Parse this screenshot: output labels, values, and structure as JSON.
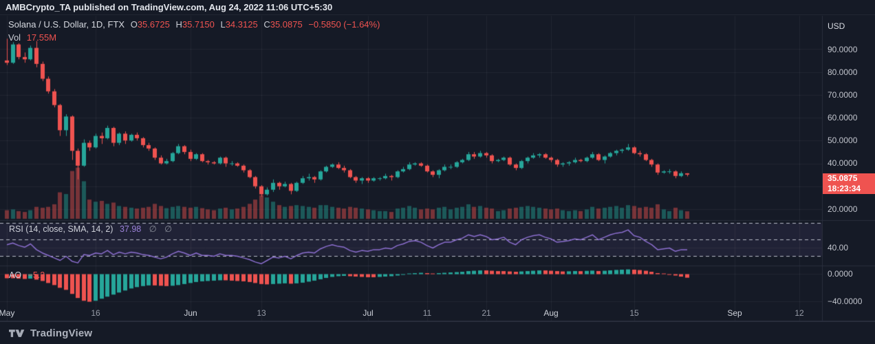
{
  "attribution": "AMBCrypto_TA published on TradingView.com, Aug 24, 2022 11:06 UTC+5:30",
  "legend": {
    "symbol": "Solana / U.S. Dollar, 1D, FTX",
    "ohlc": [
      {
        "label": "O",
        "value": "35.6725"
      },
      {
        "label": "H",
        "value": "35.7150"
      },
      {
        "label": "L",
        "value": "34.3125"
      },
      {
        "label": "C",
        "value": "35.0875"
      }
    ],
    "change": "−0.5850 (−1.64%)",
    "volume_label": "Vol",
    "volume_value": "17.55M"
  },
  "price_axis": {
    "currency": "USD",
    "labels": [
      "90.0000",
      "80.0000",
      "70.0000",
      "60.0000",
      "50.0000",
      "40.0000",
      "20.0000"
    ],
    "last_price": "35.0875",
    "countdown": "18:23:34"
  },
  "rsi_panel": {
    "title": "RSI (14, close, SMA, 14, 2)",
    "value": "37.98",
    "hidden_markers": "∅ ∅",
    "axis_label": "40.00"
  },
  "ao_panel": {
    "title": "AO",
    "value": "−5.2",
    "axis_zero_label": "0.0000",
    "axis_neg_label": "−40.0000"
  },
  "time_axis": {
    "ticks": [
      {
        "label": "May",
        "day": 0,
        "month": true
      },
      {
        "label": "16",
        "day": 15,
        "month": false
      },
      {
        "label": "Jun",
        "day": 31,
        "month": true
      },
      {
        "label": "13",
        "day": 43,
        "month": false
      },
      {
        "label": "Jul",
        "day": 61,
        "month": true
      },
      {
        "label": "11",
        "day": 71,
        "month": false
      },
      {
        "label": "21",
        "day": 81,
        "month": false
      },
      {
        "label": "Aug",
        "day": 92,
        "month": true
      },
      {
        "label": "15",
        "day": 106,
        "month": false
      },
      {
        "label": "Sep",
        "day": 123,
        "month": true
      },
      {
        "label": "12",
        "day": 134,
        "month": false
      }
    ]
  },
  "footer": {
    "brand": "TradingView"
  },
  "colors": {
    "background": "#151a26",
    "up": "#26a69a",
    "down": "#ef5350",
    "vol_up": "rgba(38,166,154,0.45)",
    "vol_down": "rgba(239,83,80,0.45)",
    "grid": "rgba(255,255,255,0.055)",
    "separator": "#2a2f3e",
    "rsi_line": "#8c6fd0",
    "rsi_band": "rgba(136,110,200,0.10)",
    "rsi_dash": "rgba(224,228,236,0.8)",
    "badge_bg": "#ef5350"
  },
  "chart_data": {
    "type": "candlestick",
    "title": "Solana / U.S. Dollar",
    "symbol": "SOL/USD",
    "interval": "1D",
    "exchange": "FTX",
    "start_date": "2022-05-01",
    "end_date": "2022-08-24",
    "ylabel": "USD",
    "ylim": [
      16,
      105
    ],
    "grid": true,
    "x_tick_labels": [
      "May",
      "16",
      "Jun",
      "13",
      "Jul",
      "11",
      "21",
      "Aug",
      "15",
      "Sep",
      "12"
    ],
    "ohlc": [
      [
        85.0,
        94.5,
        83.0,
        84.0
      ],
      [
        84.0,
        93.0,
        83.5,
        92.0
      ],
      [
        92.0,
        92.5,
        85.5,
        86.5
      ],
      [
        86.5,
        88.5,
        84.0,
        85.5
      ],
      [
        85.5,
        91.5,
        85.0,
        90.5
      ],
      [
        90.5,
        93.5,
        82.0,
        83.5
      ],
      [
        83.5,
        84.5,
        76.0,
        77.0
      ],
      [
        77.0,
        78.0,
        70.5,
        71.5
      ],
      [
        71.5,
        72.5,
        64.5,
        65.5
      ],
      [
        65.5,
        66.0,
        52.0,
        54.5
      ],
      [
        54.5,
        61.5,
        52.0,
        60.5
      ],
      [
        60.5,
        61.0,
        41.5,
        45.5
      ],
      [
        45.5,
        46.5,
        33.0,
        39.0
      ],
      [
        39.0,
        50.5,
        38.5,
        49.0
      ],
      [
        49.0,
        50.0,
        45.5,
        47.0
      ],
      [
        47.0,
        53.0,
        46.5,
        52.0
      ],
      [
        52.0,
        53.5,
        48.5,
        51.0
      ],
      [
        51.0,
        56.5,
        50.5,
        55.5
      ],
      [
        55.5,
        56.0,
        47.5,
        49.0
      ],
      [
        49.0,
        53.5,
        48.0,
        53.0
      ],
      [
        53.0,
        54.0,
        48.5,
        50.0
      ],
      [
        50.0,
        53.0,
        49.5,
        52.5
      ],
      [
        52.5,
        53.5,
        50.0,
        51.0
      ],
      [
        51.0,
        51.5,
        47.0,
        48.0
      ],
      [
        48.0,
        49.0,
        45.5,
        46.5
      ],
      [
        46.5,
        47.0,
        41.5,
        42.5
      ],
      [
        42.5,
        43.5,
        39.5,
        40.0
      ],
      [
        40.0,
        42.0,
        39.5,
        41.0
      ],
      [
        41.0,
        45.0,
        40.5,
        44.5
      ],
      [
        44.5,
        48.5,
        44.0,
        47.5
      ],
      [
        47.5,
        48.0,
        44.0,
        45.0
      ],
      [
        45.0,
        46.0,
        41.0,
        42.0
      ],
      [
        42.0,
        44.5,
        41.5,
        44.0
      ],
      [
        44.0,
        44.5,
        40.5,
        41.0
      ],
      [
        41.0,
        41.5,
        39.5,
        40.5
      ],
      [
        40.5,
        41.0,
        39.5,
        40.0
      ],
      [
        40.0,
        43.0,
        39.5,
        42.5
      ],
      [
        42.5,
        43.0,
        38.5,
        40.0
      ],
      [
        40.0,
        41.0,
        39.0,
        40.0
      ],
      [
        40.0,
        40.5,
        38.5,
        39.0
      ],
      [
        39.0,
        39.5,
        36.0,
        37.0
      ],
      [
        37.0,
        37.5,
        33.5,
        34.0
      ],
      [
        34.0,
        34.5,
        29.0,
        30.0
      ],
      [
        30.0,
        30.5,
        25.5,
        26.5
      ],
      [
        26.5,
        29.5,
        25.9,
        28.5
      ],
      [
        28.5,
        33.0,
        27.5,
        31.5
      ],
      [
        31.5,
        32.0,
        28.5,
        30.0
      ],
      [
        30.0,
        32.0,
        29.5,
        31.0
      ],
      [
        31.0,
        31.5,
        26.5,
        28.0
      ],
      [
        28.0,
        32.0,
        27.5,
        31.5
      ],
      [
        31.5,
        34.5,
        31.0,
        33.5
      ],
      [
        33.5,
        35.5,
        32.5,
        34.0
      ],
      [
        34.0,
        34.5,
        31.5,
        33.0
      ],
      [
        33.0,
        37.0,
        32.5,
        36.5
      ],
      [
        36.5,
        39.0,
        36.0,
        38.5
      ],
      [
        38.5,
        40.0,
        38.0,
        39.5
      ],
      [
        39.5,
        40.5,
        37.5,
        38.0
      ],
      [
        38.0,
        39.0,
        36.0,
        37.0
      ],
      [
        37.0,
        37.5,
        33.5,
        34.0
      ],
      [
        34.0,
        34.5,
        31.5,
        32.5
      ],
      [
        32.5,
        34.0,
        31.0,
        33.5
      ],
      [
        33.5,
        34.0,
        31.5,
        32.5
      ],
      [
        32.5,
        34.0,
        32.0,
        33.5
      ],
      [
        33.5,
        34.0,
        32.5,
        33.5
      ],
      [
        33.5,
        35.5,
        33.0,
        34.5
      ],
      [
        34.5,
        35.0,
        32.5,
        34.0
      ],
      [
        34.0,
        37.0,
        33.5,
        36.5
      ],
      [
        36.5,
        38.5,
        36.0,
        37.5
      ],
      [
        37.5,
        40.5,
        37.0,
        39.5
      ],
      [
        39.5,
        40.5,
        39.0,
        40.0
      ],
      [
        40.0,
        40.5,
        38.5,
        39.0
      ],
      [
        39.0,
        39.5,
        36.0,
        36.5
      ],
      [
        36.5,
        37.0,
        34.0,
        35.0
      ],
      [
        35.0,
        37.5,
        33.5,
        37.0
      ],
      [
        37.0,
        39.5,
        36.5,
        38.5
      ],
      [
        38.5,
        39.5,
        37.5,
        38.5
      ],
      [
        38.5,
        41.0,
        38.0,
        40.5
      ],
      [
        40.5,
        42.0,
        40.0,
        41.5
      ],
      [
        41.5,
        45.0,
        41.0,
        44.0
      ],
      [
        44.0,
        45.0,
        42.0,
        43.0
      ],
      [
        43.0,
        45.5,
        42.5,
        44.5
      ],
      [
        44.5,
        45.0,
        42.5,
        43.5
      ],
      [
        43.5,
        44.0,
        40.0,
        41.0
      ],
      [
        41.0,
        42.0,
        40.5,
        41.5
      ],
      [
        41.5,
        43.0,
        41.0,
        42.5
      ],
      [
        42.5,
        43.0,
        39.0,
        39.5
      ],
      [
        39.5,
        40.0,
        37.0,
        38.0
      ],
      [
        38.0,
        41.5,
        37.5,
        41.0
      ],
      [
        41.0,
        43.0,
        40.0,
        42.5
      ],
      [
        42.5,
        44.5,
        42.0,
        43.5
      ],
      [
        43.5,
        44.5,
        42.5,
        44.0
      ],
      [
        44.0,
        44.5,
        42.0,
        42.5
      ],
      [
        42.5,
        43.0,
        40.5,
        41.5
      ],
      [
        41.5,
        42.0,
        38.5,
        39.5
      ],
      [
        39.5,
        40.5,
        38.5,
        40.0
      ],
      [
        40.0,
        41.0,
        39.0,
        40.5
      ],
      [
        40.5,
        42.5,
        40.0,
        41.5
      ],
      [
        41.5,
        42.0,
        40.5,
        41.0
      ],
      [
        41.0,
        43.0,
        40.5,
        42.5
      ],
      [
        42.5,
        45.0,
        42.0,
        44.0
      ],
      [
        44.0,
        44.5,
        41.0,
        41.5
      ],
      [
        41.5,
        43.5,
        40.0,
        43.0
      ],
      [
        43.0,
        45.0,
        42.5,
        44.5
      ],
      [
        44.5,
        46.0,
        43.5,
        45.5
      ],
      [
        45.5,
        46.5,
        44.5,
        46.0
      ],
      [
        46.0,
        48.5,
        45.5,
        47.0
      ],
      [
        47.0,
        47.5,
        44.0,
        44.5
      ],
      [
        44.5,
        45.5,
        43.0,
        44.0
      ],
      [
        44.0,
        44.5,
        41.0,
        41.5
      ],
      [
        41.5,
        42.0,
        38.5,
        39.5
      ],
      [
        39.5,
        40.0,
        35.0,
        36.0
      ],
      [
        36.0,
        37.0,
        35.5,
        36.5
      ],
      [
        36.5,
        37.5,
        35.5,
        36.5
      ],
      [
        36.5,
        37.0,
        33.5,
        34.5
      ],
      [
        34.5,
        36.5,
        34.0,
        35.7
      ],
      [
        35.67,
        35.72,
        34.31,
        35.09
      ]
    ],
    "volume_millions": [
      20,
      22,
      18,
      16,
      20,
      28,
      26,
      28,
      34,
      62,
      58,
      112,
      120,
      88,
      45,
      40,
      42,
      35,
      38,
      30,
      28,
      26,
      24,
      26,
      28,
      35,
      30,
      25,
      28,
      30,
      28,
      26,
      28,
      25,
      22,
      20,
      24,
      26,
      22,
      24,
      28,
      35,
      45,
      55,
      50,
      40,
      32,
      28,
      30,
      32,
      30,
      28,
      26,
      32,
      32,
      28,
      26,
      24,
      28,
      26,
      24,
      22,
      20,
      18,
      18,
      16,
      24,
      26,
      30,
      26,
      22,
      24,
      22,
      26,
      28,
      22,
      26,
      28,
      34,
      28,
      30,
      26,
      24,
      18,
      20,
      24,
      26,
      28,
      30,
      28,
      26,
      24,
      22,
      24,
      20,
      18,
      20,
      18,
      22,
      28,
      24,
      26,
      28,
      30,
      26,
      32,
      30,
      26,
      28,
      26,
      34,
      22,
      18,
      26,
      20,
      17.55
    ],
    "indicators": {
      "rsi": {
        "name": "RSI",
        "settings": "14, close, SMA, 14, 2",
        "bands": [
          70,
          50,
          30
        ],
        "last_value": 37.98,
        "values": [
          44,
          46,
          43,
          41,
          45,
          38,
          34,
          31,
          28,
          25,
          30,
          24,
          22,
          32,
          31,
          34,
          33,
          37,
          32,
          35,
          33,
          35,
          34,
          32,
          31,
          29,
          27,
          29,
          33,
          36,
          34,
          31,
          34,
          31,
          31,
          30,
          33,
          31,
          31,
          30,
          28,
          26,
          23,
          21,
          25,
          29,
          28,
          30,
          27,
          31,
          34,
          35,
          34,
          39,
          42,
          44,
          42,
          41,
          37,
          35,
          37,
          36,
          38,
          38,
          40,
          39,
          43,
          45,
          48,
          49,
          47,
          43,
          40,
          44,
          47,
          47,
          50,
          52,
          56,
          54,
          56,
          54,
          50,
          51,
          53,
          47,
          44,
          50,
          53,
          55,
          56,
          53,
          51,
          47,
          48,
          49,
          51,
          50,
          53,
          56,
          50,
          53,
          56,
          58,
          59,
          62,
          55,
          53,
          48,
          44,
          38,
          39,
          40,
          36,
          38,
          37.98
        ]
      },
      "ao": {
        "name": "Awesome Oscillator",
        "last_value": -5.2,
        "axis_range": [
          -40,
          0
        ],
        "values": [
          -6,
          -6,
          -6.5,
          -7,
          -6.5,
          -8,
          -10,
          -13,
          -16,
          -20,
          -23,
          -29,
          -35,
          -39,
          -40.5,
          -39,
          -36,
          -33,
          -30,
          -27,
          -24,
          -21,
          -19,
          -17.5,
          -16.5,
          -16.5,
          -17,
          -17.5,
          -17,
          -16,
          -14.5,
          -13,
          -11.5,
          -10.5,
          -10,
          -9.5,
          -9,
          -9,
          -9.5,
          -10,
          -10.5,
          -11.5,
          -13,
          -14.5,
          -15,
          -14.5,
          -14,
          -13.5,
          -14,
          -13.5,
          -12.5,
          -11,
          -9.5,
          -7.5,
          -5.5,
          -4,
          -3,
          -2.5,
          -3,
          -3.5,
          -4,
          -4.5,
          -4.5,
          -4,
          -3.5,
          -3,
          -2,
          -1,
          0.5,
          1.5,
          2,
          1.5,
          1,
          1.5,
          2,
          2.5,
          3,
          3.5,
          4.5,
          5,
          5.5,
          5.5,
          5,
          4.5,
          4.5,
          4,
          3.5,
          4,
          4.5,
          5,
          5.5,
          5.5,
          5,
          4.5,
          4,
          4.2,
          4.6,
          4.4,
          4.8,
          5.2,
          4.6,
          5,
          5.6,
          6.2,
          6.6,
          7,
          6.6,
          6,
          5,
          3.5,
          1.5,
          0.5,
          -0.5,
          -2,
          -3.6,
          -5.2
        ]
      }
    }
  }
}
